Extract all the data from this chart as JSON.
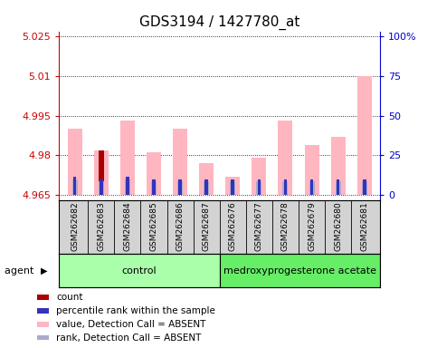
{
  "title": "GDS3194 / 1427780_at",
  "samples": [
    "GSM262682",
    "GSM262683",
    "GSM262684",
    "GSM262685",
    "GSM262686",
    "GSM262687",
    "GSM262676",
    "GSM262677",
    "GSM262678",
    "GSM262679",
    "GSM262680",
    "GSM262681"
  ],
  "groups": [
    "control",
    "control",
    "control",
    "control",
    "control",
    "control",
    "medroxyprogesterone acetate",
    "medroxyprogesterone acetate",
    "medroxyprogesterone acetate",
    "medroxyprogesterone acetate",
    "medroxyprogesterone acetate",
    "medroxyprogesterone acetate"
  ],
  "ylim": [
    4.963,
    5.027
  ],
  "yticks_left": [
    4.965,
    4.98,
    4.995,
    5.01,
    5.025
  ],
  "ytick_labels_left": [
    "4.965",
    "4.98",
    "4.995",
    "5.01",
    "5.025"
  ],
  "right_tick_positions": [
    4.965,
    4.98,
    4.995,
    5.01,
    5.025
  ],
  "ytick_labels_right": [
    "0",
    "25",
    "50",
    "75",
    "100%"
  ],
  "baseline": 4.965,
  "pink_values": [
    4.99,
    4.982,
    4.993,
    4.981,
    4.99,
    4.977,
    4.972,
    4.979,
    4.993,
    4.984,
    4.987,
    5.01
  ],
  "red_values": [
    0,
    4.982,
    0,
    0,
    0,
    0,
    0,
    0,
    0,
    0,
    0,
    0
  ],
  "blue_values": [
    4.972,
    4.971,
    4.972,
    4.971,
    4.971,
    4.971,
    4.971,
    4.971,
    4.971,
    4.971,
    4.971,
    4.971
  ],
  "lavender_values": [
    4.971,
    4.97,
    4.971,
    4.97,
    4.97,
    4.97,
    4.97,
    4.97,
    4.97,
    4.97,
    4.97,
    4.97
  ],
  "bar_width": 0.55,
  "pink_color": "#FFB6C1",
  "red_color": "#AA0000",
  "blue_color": "#3333BB",
  "lavender_color": "#AAAACC",
  "control_color": "#AAFFAA",
  "treatment_color": "#66EE66",
  "group_control": "control",
  "group_treatment": "medroxyprogesterone acetate",
  "n_control": 6,
  "n_treatment": 6,
  "legend_items": [
    "count",
    "percentile rank within the sample",
    "value, Detection Call = ABSENT",
    "rank, Detection Call = ABSENT"
  ],
  "legend_colors": [
    "#AA0000",
    "#3333BB",
    "#FFB6C1",
    "#AAAACC"
  ],
  "title_fontsize": 11,
  "axis_color_left": "#CC0000",
  "axis_color_right": "#0000CC",
  "gray_bg": "#D3D3D3",
  "plot_bg": "#FFFFFF"
}
